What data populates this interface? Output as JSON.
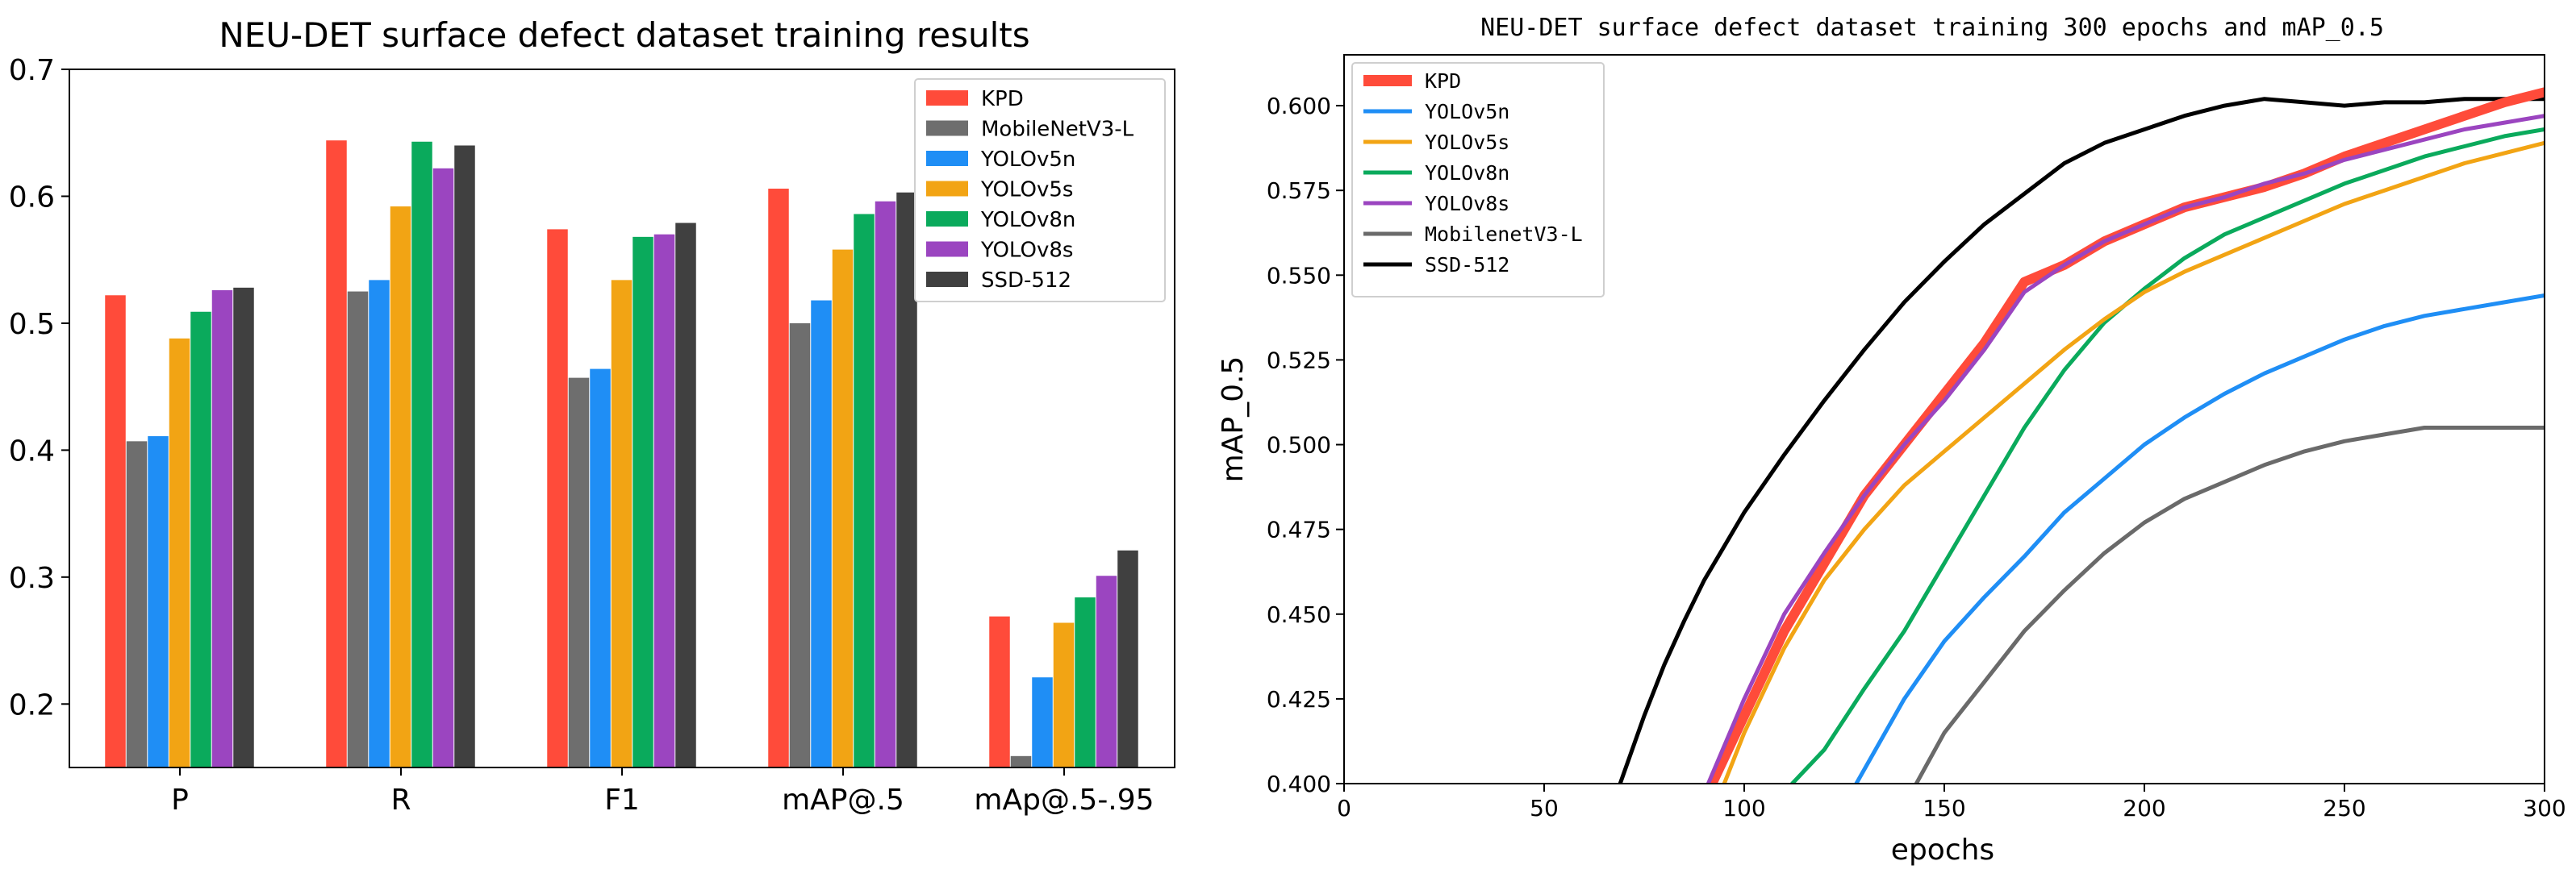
{
  "colors": {
    "KPD": "#ff4b3a",
    "MobileNetV3-L": "#6e6e6e",
    "YOLOv5n": "#1f8ef5",
    "YOLOv5s": "#f2a414",
    "YOLOv8n": "#0aaa5c",
    "YOLOv8s": "#9b45c0",
    "SSD-512": "#404040",
    "SSD-512-line": "#000000"
  },
  "chart_data": [
    {
      "type": "bar",
      "title": "NEU-DET surface defect dataset training results",
      "xlabel": "",
      "ylabel": "",
      "categories": [
        "P",
        "R",
        "F1",
        "mAP@.5",
        "mAp@.5-.95"
      ],
      "ylim": [
        0.15,
        0.7
      ],
      "yticks": [
        0.2,
        0.3,
        0.4,
        0.5,
        0.6,
        0.7
      ],
      "ytick_labels": [
        "0.2",
        "0.3",
        "0.4",
        "0.5",
        "0.6",
        "0.7"
      ],
      "legend_position": "top-right",
      "series": [
        {
          "name": "KPD",
          "values": [
            0.522,
            0.644,
            0.574,
            0.606,
            0.269
          ]
        },
        {
          "name": "MobileNetV3-L",
          "values": [
            0.407,
            0.525,
            0.457,
            0.5,
            0.159
          ]
        },
        {
          "name": "YOLOv5n",
          "values": [
            0.411,
            0.534,
            0.464,
            0.518,
            0.221
          ]
        },
        {
          "name": "YOLOv5s",
          "values": [
            0.488,
            0.592,
            0.534,
            0.558,
            0.264
          ]
        },
        {
          "name": "YOLOv8n",
          "values": [
            0.509,
            0.643,
            0.568,
            0.586,
            0.284
          ]
        },
        {
          "name": "YOLOv8s",
          "values": [
            0.526,
            0.622,
            0.57,
            0.596,
            0.301
          ]
        },
        {
          "name": "SSD-512",
          "values": [
            0.528,
            0.64,
            0.579,
            0.603,
            0.321
          ]
        }
      ]
    },
    {
      "type": "line",
      "title": "NEU-DET surface defect dataset training 300 epochs and mAP_0.5",
      "xlabel": "epochs",
      "ylabel": "mAP_0.5",
      "xlim": [
        0,
        300
      ],
      "ylim": [
        0.4,
        0.615
      ],
      "xticks": [
        0,
        50,
        100,
        150,
        200,
        250,
        300
      ],
      "xtick_labels": [
        "0",
        "50",
        "100",
        "150",
        "200",
        "250",
        "300"
      ],
      "yticks": [
        0.4,
        0.425,
        0.45,
        0.475,
        0.5,
        0.525,
        0.55,
        0.575,
        0.6
      ],
      "ytick_labels": [
        "0.400",
        "0.425",
        "0.450",
        "0.475",
        "0.500",
        "0.525",
        "0.550",
        "0.575",
        "0.600"
      ],
      "legend_position": "top-left",
      "series": [
        {
          "name": "KPD",
          "x": [
            92,
            100,
            110,
            120,
            130,
            140,
            150,
            160,
            170,
            180,
            190,
            200,
            210,
            220,
            230,
            240,
            250,
            260,
            270,
            280,
            290,
            300
          ],
          "y": [
            0.4,
            0.42,
            0.445,
            0.465,
            0.485,
            0.5,
            0.515,
            0.53,
            0.548,
            0.553,
            0.56,
            0.565,
            0.57,
            0.573,
            0.576,
            0.58,
            0.585,
            0.589,
            0.593,
            0.597,
            0.601,
            0.604
          ]
        },
        {
          "name": "YOLOv5n",
          "x": [
            128,
            140,
            150,
            160,
            170,
            180,
            190,
            200,
            210,
            220,
            230,
            240,
            250,
            260,
            270,
            280,
            290,
            300
          ],
          "y": [
            0.4,
            0.425,
            0.442,
            0.455,
            0.467,
            0.48,
            0.49,
            0.5,
            0.508,
            0.515,
            0.521,
            0.526,
            0.531,
            0.535,
            0.538,
            0.54,
            0.542,
            0.544
          ]
        },
        {
          "name": "YOLOv5s",
          "x": [
            95,
            100,
            110,
            120,
            130,
            140,
            150,
            160,
            170,
            180,
            190,
            200,
            210,
            220,
            230,
            240,
            250,
            260,
            270,
            280,
            290,
            300
          ],
          "y": [
            0.4,
            0.415,
            0.44,
            0.46,
            0.475,
            0.488,
            0.498,
            0.508,
            0.518,
            0.528,
            0.537,
            0.545,
            0.551,
            0.556,
            0.561,
            0.566,
            0.571,
            0.575,
            0.579,
            0.583,
            0.586,
            0.589
          ]
        },
        {
          "name": "YOLOv8n",
          "x": [
            112,
            120,
            130,
            140,
            150,
            160,
            170,
            180,
            190,
            200,
            210,
            220,
            230,
            240,
            250,
            260,
            270,
            280,
            290,
            300
          ],
          "y": [
            0.4,
            0.41,
            0.428,
            0.445,
            0.465,
            0.485,
            0.505,
            0.522,
            0.536,
            0.546,
            0.555,
            0.562,
            0.567,
            0.572,
            0.577,
            0.581,
            0.585,
            0.588,
            0.591,
            0.593
          ]
        },
        {
          "name": "YOLOv8s",
          "x": [
            91,
            100,
            110,
            120,
            130,
            140,
            150,
            160,
            170,
            180,
            190,
            200,
            210,
            220,
            230,
            240,
            250,
            260,
            270,
            280,
            290,
            300
          ],
          "y": [
            0.4,
            0.425,
            0.45,
            0.468,
            0.485,
            0.5,
            0.513,
            0.528,
            0.545,
            0.553,
            0.56,
            0.565,
            0.57,
            0.573,
            0.577,
            0.58,
            0.584,
            0.587,
            0.59,
            0.593,
            0.595,
            0.597
          ]
        },
        {
          "name": "MobilenetV3-L",
          "x": [
            143,
            150,
            160,
            170,
            180,
            190,
            200,
            210,
            220,
            230,
            240,
            250,
            260,
            270,
            280,
            290,
            300
          ],
          "y": [
            0.4,
            0.415,
            0.43,
            0.445,
            0.457,
            0.468,
            0.477,
            0.484,
            0.489,
            0.494,
            0.498,
            0.501,
            0.503,
            0.505,
            0.505,
            0.505,
            0.505
          ]
        },
        {
          "name": "SSD-512",
          "x": [
            69,
            75,
            80,
            85,
            90,
            95,
            100,
            110,
            120,
            130,
            140,
            150,
            160,
            170,
            180,
            190,
            200,
            210,
            220,
            230,
            240,
            250,
            260,
            270,
            280,
            290,
            300
          ],
          "y": [
            0.4,
            0.42,
            0.435,
            0.448,
            0.46,
            0.47,
            0.48,
            0.497,
            0.513,
            0.528,
            0.542,
            0.554,
            0.565,
            0.574,
            0.583,
            0.589,
            0.593,
            0.597,
            0.6,
            0.602,
            0.601,
            0.6,
            0.601,
            0.601,
            0.602,
            0.602,
            0.602
          ]
        }
      ]
    }
  ]
}
